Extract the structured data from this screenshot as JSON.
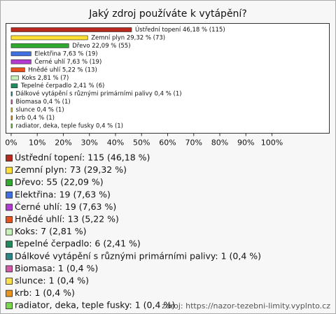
{
  "chart_data": {
    "type": "hbar",
    "title": "Jaký zdroj používáte k vytápění?",
    "categories": [
      "Ústřední topení",
      "Zemní plyn",
      "Dřevo",
      "Elektřina",
      "Černé uhlí",
      "Hnědé uhlí",
      "Koks",
      "Tepelné čerpadlo",
      "Dálkové vytápění s různými primárními palivy",
      "Biomasa",
      "slunce",
      "krb",
      "radiator, deka, teple fusky"
    ],
    "values": [
      46.18,
      29.32,
      22.09,
      7.63,
      7.63,
      5.22,
      2.81,
      2.41,
      0.4,
      0.4,
      0.4,
      0.4,
      0.4
    ],
    "value_labels": [
      "Ústřední topení 46,18 % (115)",
      "Zemní plyn 29,32 % (73)",
      "Dřevo 22,09 % (55)",
      "Elektřina 7,63 % (19)",
      "Černé uhlí 7,63 % (19)",
      "Hnědé uhlí 5,22 % (13)",
      "Koks 2,81 % (7)",
      "Tepelné čerpadlo 2,41 % (6)",
      "Dálkové vytápění s různými primárními palivy 0,4 % (1)",
      "Biomasa 0,4 % (1)",
      "slunce 0,4 % (1)",
      "krb 0,4 % (1)",
      "radiator, deka, teple fusky 0,4 % (1)"
    ],
    "legend_labels": [
      "Ústřední topení: 115 (46,18 %)",
      "Zemní plyn: 73 (29,32 %)",
      "Dřevo: 55 (22,09 %)",
      "Elektřina: 19 (7,63 %)",
      "Černé uhlí: 19 (7,63 %)",
      "Hnědé uhlí: 13 (5,22 %)",
      "Koks: 7 (2,81 %)",
      "Tepelné čerpadlo: 6 (2,41 %)",
      "Dálkové vytápění s různými primárními palivy: 1 (0,4 %)",
      "Biomasa: 1 (0,4 %)",
      "slunce: 1 (0,4 %)",
      "krb: 1 (0,4 %)",
      "radiator, deka, teple fusky: 1 (0,4 %)"
    ],
    "colors": [
      "#b8281c",
      "#ffe033",
      "#2faa2f",
      "#3f6fe0",
      "#b23ad0",
      "#e8521e",
      "#c4f2b8",
      "#1f8a5c",
      "#2a8686",
      "#d05aa8",
      "#ffe04a",
      "#e8961e",
      "#7ad84a"
    ],
    "xlim": [
      -2,
      122
    ],
    "xticks": [
      {
        "value": 0,
        "label": "0%"
      },
      {
        "value": 10,
        "label": "10%"
      },
      {
        "value": 20,
        "label": "20%"
      },
      {
        "value": 30,
        "label": "30%"
      },
      {
        "value": 40,
        "label": "40%"
      },
      {
        "value": 50,
        "label": "50%"
      },
      {
        "value": 60,
        "label": "60%"
      },
      {
        "value": 70,
        "label": "70%"
      },
      {
        "value": 80,
        "label": "80%"
      },
      {
        "value": 90,
        "label": "90%"
      },
      {
        "value": 100,
        "label": "100%"
      }
    ],
    "grid": false,
    "source": "zdroj: https://nazor-tezebni-limity.vyplnto.cz"
  }
}
